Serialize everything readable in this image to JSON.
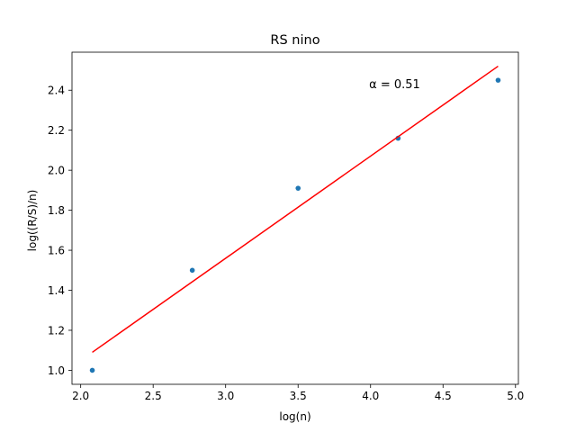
{
  "chart_data": {
    "type": "scatter",
    "title": "RS nino",
    "xlabel": "log(n)",
    "ylabel": "log((R/S)/n)",
    "xlim": [
      1.94,
      5.02
    ],
    "ylim": [
      0.93,
      2.59
    ],
    "xticks": [
      2.0,
      2.5,
      3.0,
      3.5,
      4.0,
      4.5,
      5.0
    ],
    "xtick_labels": [
      "2.0",
      "2.5",
      "3.0",
      "3.5",
      "4.0",
      "4.5",
      "5.0"
    ],
    "yticks": [
      1.0,
      1.2,
      1.4,
      1.6,
      1.8,
      2.0,
      2.2,
      2.4
    ],
    "ytick_labels": [
      "1.0",
      "1.2",
      "1.4",
      "1.6",
      "1.8",
      "2.0",
      "2.2",
      "2.4"
    ],
    "grid": false,
    "series": [
      {
        "type": "scatter",
        "color": "#1f77b4",
        "x": [
          2.08,
          2.77,
          3.5,
          4.19,
          4.88
        ],
        "y": [
          1.0,
          1.5,
          1.91,
          2.16,
          2.45
        ]
      },
      {
        "type": "line",
        "color": "#ff0000",
        "x": [
          2.08,
          4.88
        ],
        "y": [
          1.09,
          2.52
        ]
      }
    ],
    "annotations": [
      {
        "text": "α = 0.51",
        "x": 3.99,
        "y": 2.41
      }
    ]
  }
}
